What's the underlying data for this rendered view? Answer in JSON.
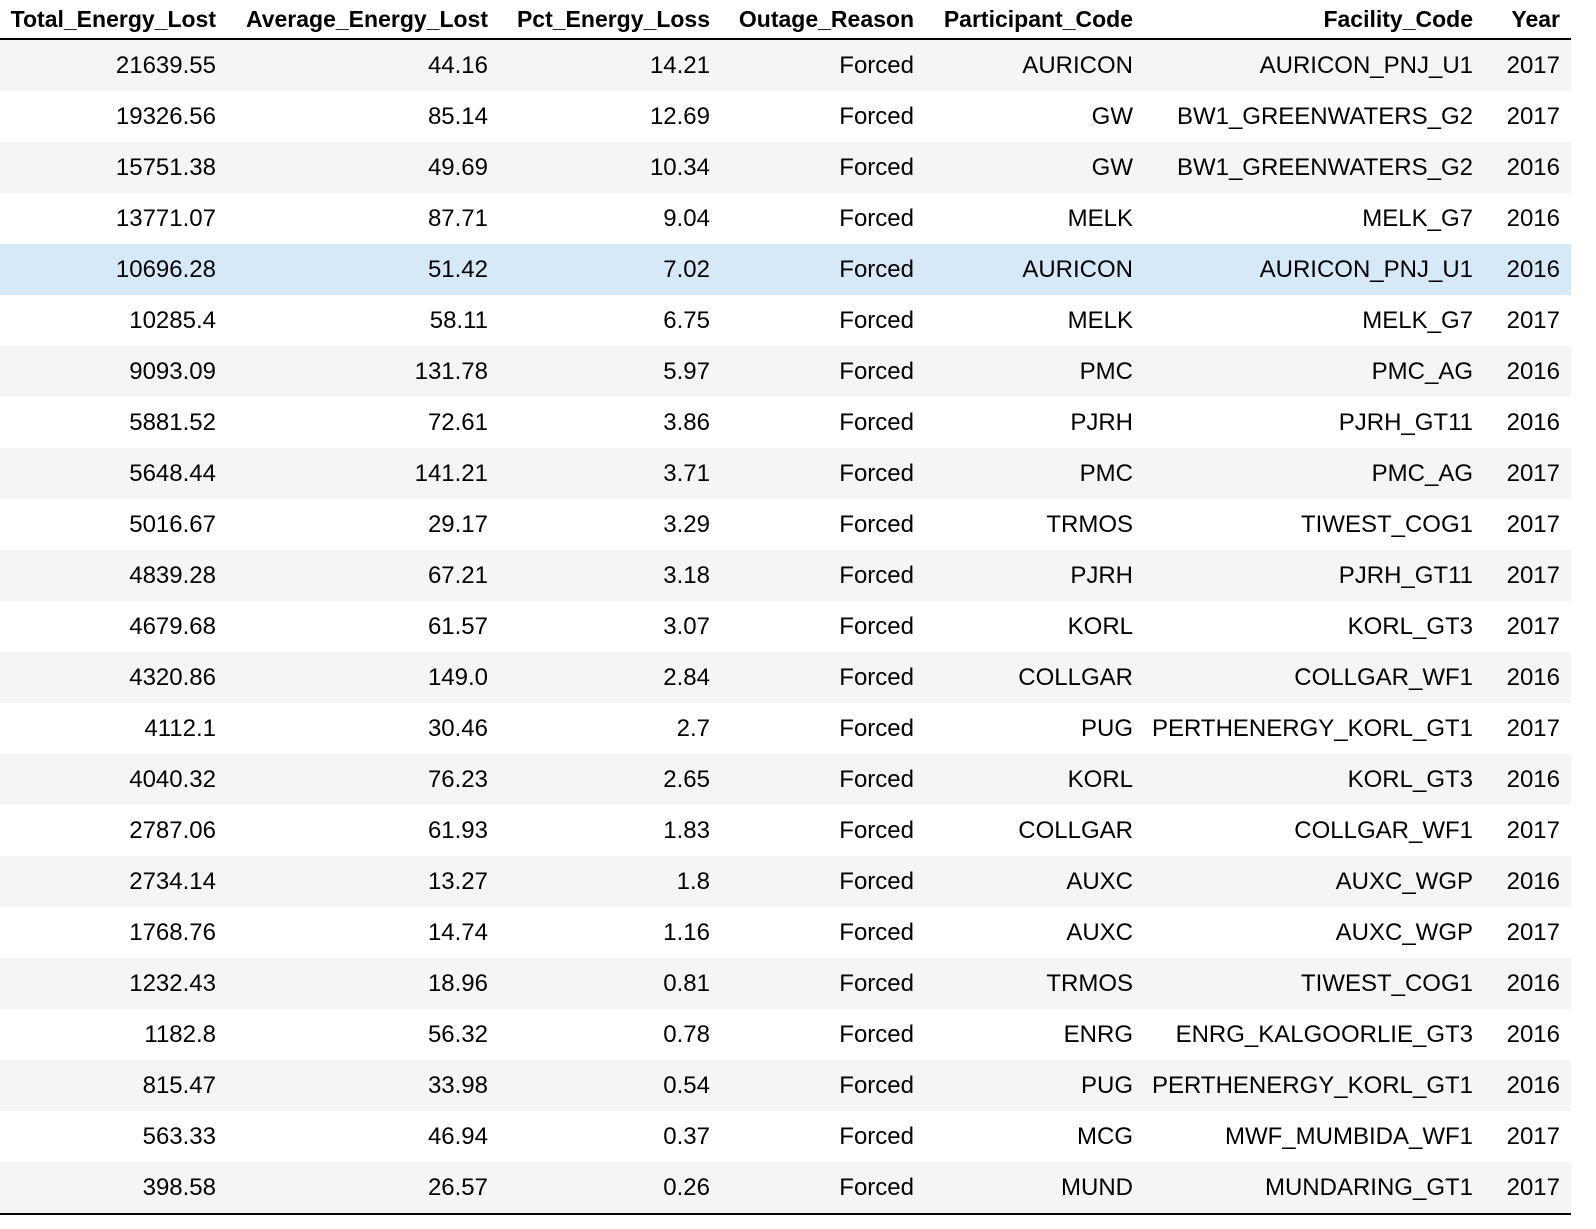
{
  "table": {
    "columns": [
      "Total_Energy_Lost",
      "Average_Energy_Lost",
      "Pct_Energy_Loss",
      "Outage_Reason",
      "Participant_Code",
      "Facility_Code",
      "Year"
    ],
    "highlighted_row": 4,
    "rows": [
      [
        "21639.55",
        "44.16",
        "14.21",
        "Forced",
        "AURICON",
        "AURICON_PNJ_U1",
        "2017"
      ],
      [
        "19326.56",
        "85.14",
        "12.69",
        "Forced",
        "GW",
        "BW1_GREENWATERS_G2",
        "2017"
      ],
      [
        "15751.38",
        "49.69",
        "10.34",
        "Forced",
        "GW",
        "BW1_GREENWATERS_G2",
        "2016"
      ],
      [
        "13771.07",
        "87.71",
        "9.04",
        "Forced",
        "MELK",
        "MELK_G7",
        "2016"
      ],
      [
        "10696.28",
        "51.42",
        "7.02",
        "Forced",
        "AURICON",
        "AURICON_PNJ_U1",
        "2016"
      ],
      [
        "10285.4",
        "58.11",
        "6.75",
        "Forced",
        "MELK",
        "MELK_G7",
        "2017"
      ],
      [
        "9093.09",
        "131.78",
        "5.97",
        "Forced",
        "PMC",
        "PMC_AG",
        "2016"
      ],
      [
        "5881.52",
        "72.61",
        "3.86",
        "Forced",
        "PJRH",
        "PJRH_GT11",
        "2016"
      ],
      [
        "5648.44",
        "141.21",
        "3.71",
        "Forced",
        "PMC",
        "PMC_AG",
        "2017"
      ],
      [
        "5016.67",
        "29.17",
        "3.29",
        "Forced",
        "TRMOS",
        "TIWEST_COG1",
        "2017"
      ],
      [
        "4839.28",
        "67.21",
        "3.18",
        "Forced",
        "PJRH",
        "PJRH_GT11",
        "2017"
      ],
      [
        "4679.68",
        "61.57",
        "3.07",
        "Forced",
        "KORL",
        "KORL_GT3",
        "2017"
      ],
      [
        "4320.86",
        "149.0",
        "2.84",
        "Forced",
        "COLLGAR",
        "COLLGAR_WF1",
        "2016"
      ],
      [
        "4112.1",
        "30.46",
        "2.7",
        "Forced",
        "PUG",
        "PERTHENERGY_KORL_GT1",
        "2017"
      ],
      [
        "4040.32",
        "76.23",
        "2.65",
        "Forced",
        "KORL",
        "KORL_GT3",
        "2016"
      ],
      [
        "2787.06",
        "61.93",
        "1.83",
        "Forced",
        "COLLGAR",
        "COLLGAR_WF1",
        "2017"
      ],
      [
        "2734.14",
        "13.27",
        "1.8",
        "Forced",
        "AUXC",
        "AUXC_WGP",
        "2016"
      ],
      [
        "1768.76",
        "14.74",
        "1.16",
        "Forced",
        "AUXC",
        "AUXC_WGP",
        "2017"
      ],
      [
        "1232.43",
        "18.96",
        "0.81",
        "Forced",
        "TRMOS",
        "TIWEST_COG1",
        "2016"
      ],
      [
        "1182.8",
        "56.32",
        "0.78",
        "Forced",
        "ENRG",
        "ENRG_KALGOORLIE_GT3",
        "2016"
      ],
      [
        "815.47",
        "33.98",
        "0.54",
        "Forced",
        "PUG",
        "PERTHENERGY_KORL_GT1",
        "2016"
      ],
      [
        "563.33",
        "46.94",
        "0.37",
        "Forced",
        "MCG",
        "MWF_MUMBIDA_WF1",
        "2017"
      ],
      [
        "398.58",
        "26.57",
        "0.26",
        "Forced",
        "MUND",
        "MUNDARING_GT1",
        "2017"
      ]
    ]
  }
}
